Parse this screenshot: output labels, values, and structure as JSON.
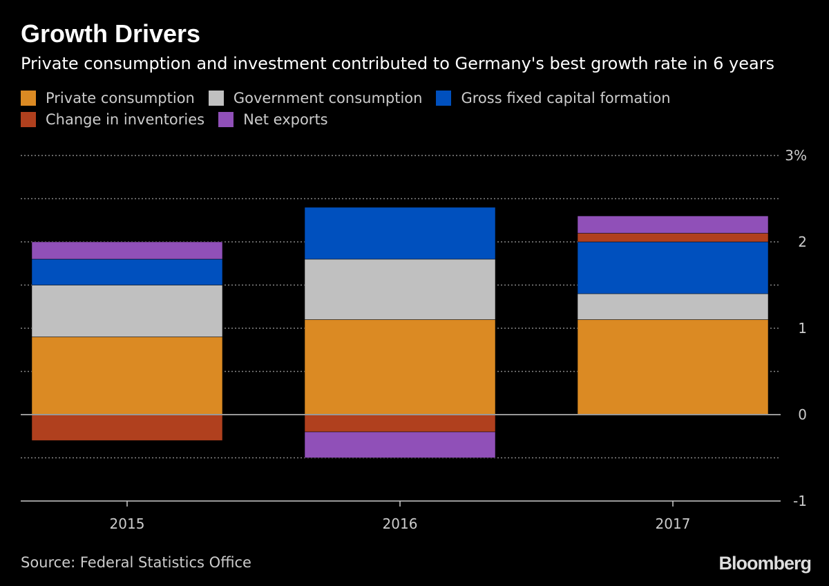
{
  "title": "Growth Drivers",
  "subtitle": "Private consumption and investment contributed to Germany's best growth rate in 6 years",
  "source": "Source: Federal Statistics Office",
  "logo": "Bloomberg",
  "chart_data": {
    "type": "bar",
    "stacked": true,
    "title": "Growth Drivers",
    "subtitle": "Private consumption and investment contributed to Germany's best growth rate in 6 years",
    "categories": [
      "2015",
      "2016",
      "2017"
    ],
    "series": [
      {
        "name": "Private consumption",
        "color": "#DB8A23",
        "values": [
          0.9,
          1.1,
          1.1
        ]
      },
      {
        "name": "Government consumption",
        "color": "#C0C0C0",
        "values": [
          0.6,
          0.7,
          0.3
        ]
      },
      {
        "name": "Gross fixed capital formation",
        "color": "#0050BE",
        "values": [
          0.3,
          0.6,
          0.6
        ]
      },
      {
        "name": "Change in inventories",
        "color": "#B0401E",
        "values": [
          -0.3,
          -0.2,
          0.1
        ]
      },
      {
        "name": "Net exports",
        "color": "#9050B8",
        "values": [
          0.2,
          -0.3,
          0.2
        ]
      }
    ],
    "ylim": [
      -1,
      3
    ],
    "yticks": [
      "3%",
      "2",
      "1",
      "0",
      "-1"
    ],
    "ytick_values": [
      3,
      2,
      1,
      0,
      -1
    ],
    "y_axis_side": "right",
    "grid": true,
    "legend_placement": "top-left"
  }
}
